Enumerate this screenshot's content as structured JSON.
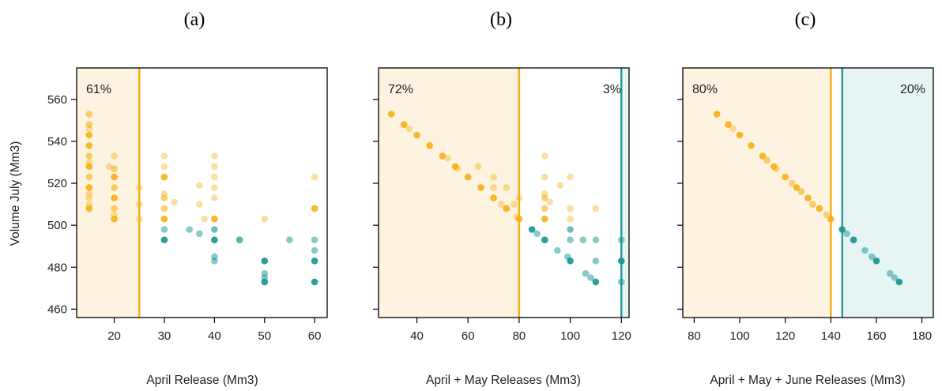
{
  "colors": {
    "orange": "#f5b014",
    "teal": "#149393",
    "orange_shade": "#fdf3e0",
    "teal_shade": "#e6f4f4"
  },
  "shared": {
    "ylabel": "Volume July (Mm3)",
    "ylim": [
      456,
      575
    ],
    "yticks": [
      460,
      480,
      500,
      520,
      540,
      560
    ]
  },
  "chart_data": [
    {
      "panel_label": "(a)",
      "type": "scatter",
      "xlabel": "April Release (Mm3)",
      "xlim": [
        12.5,
        62.5
      ],
      "xticks": [
        20,
        30,
        40,
        50,
        60
      ],
      "threshold_orange": 25,
      "threshold_teal": null,
      "pct_left": "61%",
      "pct_right": "",
      "points": [
        {
          "x": 15,
          "y": 553,
          "c": "orange",
          "a": 0.6
        },
        {
          "x": 15,
          "y": 548,
          "c": "orange",
          "a": 0.6
        },
        {
          "x": 15,
          "y": 546,
          "c": "orange",
          "a": 0.4
        },
        {
          "x": 15,
          "y": 543,
          "c": "orange",
          "a": 0.9
        },
        {
          "x": 15,
          "y": 538,
          "c": "orange",
          "a": 0.9
        },
        {
          "x": 15,
          "y": 533,
          "c": "orange",
          "a": 0.6
        },
        {
          "x": 15,
          "y": 530,
          "c": "orange",
          "a": 0.4
        },
        {
          "x": 15,
          "y": 528,
          "c": "orange",
          "a": 0.9
        },
        {
          "x": 15,
          "y": 523,
          "c": "orange",
          "a": 0.6
        },
        {
          "x": 15,
          "y": 518,
          "c": "orange",
          "a": 0.9
        },
        {
          "x": 15,
          "y": 515,
          "c": "orange",
          "a": 0.4
        },
        {
          "x": 15,
          "y": 513,
          "c": "orange",
          "a": 0.4
        },
        {
          "x": 15,
          "y": 510,
          "c": "orange",
          "a": 0.4
        },
        {
          "x": 15,
          "y": 508,
          "c": "orange",
          "a": 0.9
        },
        {
          "x": 19,
          "y": 528,
          "c": "orange",
          "a": 0.4
        },
        {
          "x": 20,
          "y": 533,
          "c": "orange",
          "a": 0.4
        },
        {
          "x": 20,
          "y": 527,
          "c": "orange",
          "a": 0.6
        },
        {
          "x": 20,
          "y": 523,
          "c": "orange",
          "a": 0.9
        },
        {
          "x": 20,
          "y": 518,
          "c": "orange",
          "a": 0.6
        },
        {
          "x": 20,
          "y": 513,
          "c": "orange",
          "a": 0.9
        },
        {
          "x": 20,
          "y": 508,
          "c": "orange",
          "a": 0.6
        },
        {
          "x": 20,
          "y": 505,
          "c": "orange",
          "a": 0.4
        },
        {
          "x": 20,
          "y": 503,
          "c": "orange",
          "a": 0.9
        },
        {
          "x": 25,
          "y": 518,
          "c": "orange",
          "a": 0.4
        },
        {
          "x": 25,
          "y": 510,
          "c": "orange",
          "a": 0.4
        },
        {
          "x": 25,
          "y": 503,
          "c": "orange",
          "a": 0.4
        },
        {
          "x": 30,
          "y": 533,
          "c": "orange",
          "a": 0.4
        },
        {
          "x": 30,
          "y": 528,
          "c": "orange",
          "a": 0.4
        },
        {
          "x": 30,
          "y": 523,
          "c": "orange",
          "a": 0.9
        },
        {
          "x": 30,
          "y": 515,
          "c": "orange",
          "a": 0.4
        },
        {
          "x": 30,
          "y": 513,
          "c": "orange",
          "a": 0.6
        },
        {
          "x": 30,
          "y": 508,
          "c": "orange",
          "a": 0.6
        },
        {
          "x": 30,
          "y": 503,
          "c": "orange",
          "a": 0.9
        },
        {
          "x": 30,
          "y": 498,
          "c": "teal",
          "a": 0.5
        },
        {
          "x": 30,
          "y": 493,
          "c": "teal",
          "a": 0.9
        },
        {
          "x": 32,
          "y": 511,
          "c": "orange",
          "a": 0.4
        },
        {
          "x": 35,
          "y": 498,
          "c": "teal",
          "a": 0.5
        },
        {
          "x": 37,
          "y": 519,
          "c": "orange",
          "a": 0.4
        },
        {
          "x": 37,
          "y": 510,
          "c": "orange",
          "a": 0.4
        },
        {
          "x": 37,
          "y": 496,
          "c": "teal",
          "a": 0.5
        },
        {
          "x": 38,
          "y": 503,
          "c": "orange",
          "a": 0.4
        },
        {
          "x": 40,
          "y": 533,
          "c": "orange",
          "a": 0.4
        },
        {
          "x": 40,
          "y": 528,
          "c": "orange",
          "a": 0.4
        },
        {
          "x": 40,
          "y": 523,
          "c": "orange",
          "a": 0.4
        },
        {
          "x": 40,
          "y": 518,
          "c": "orange",
          "a": 0.4
        },
        {
          "x": 40,
          "y": 513,
          "c": "orange",
          "a": 0.4
        },
        {
          "x": 40,
          "y": 503,
          "c": "orange",
          "a": 0.9
        },
        {
          "x": 40,
          "y": 498,
          "c": "teal",
          "a": 0.6
        },
        {
          "x": 40,
          "y": 493,
          "c": "teal",
          "a": 0.9
        },
        {
          "x": 40,
          "y": 485,
          "c": "teal",
          "a": 0.5
        },
        {
          "x": 40,
          "y": 483,
          "c": "teal",
          "a": 0.5
        },
        {
          "x": 45,
          "y": 493,
          "c": "teal",
          "a": 0.7
        },
        {
          "x": 50,
          "y": 503,
          "c": "orange",
          "a": 0.4
        },
        {
          "x": 50,
          "y": 483,
          "c": "teal",
          "a": 0.9
        },
        {
          "x": 50,
          "y": 477,
          "c": "teal",
          "a": 0.5
        },
        {
          "x": 50,
          "y": 475,
          "c": "teal",
          "a": 0.5
        },
        {
          "x": 50,
          "y": 473,
          "c": "teal",
          "a": 0.9
        },
        {
          "x": 55,
          "y": 493,
          "c": "teal",
          "a": 0.5
        },
        {
          "x": 60,
          "y": 523,
          "c": "orange",
          "a": 0.4
        },
        {
          "x": 60,
          "y": 508,
          "c": "orange",
          "a": 0.9
        },
        {
          "x": 60,
          "y": 493,
          "c": "teal",
          "a": 0.5
        },
        {
          "x": 60,
          "y": 488,
          "c": "teal",
          "a": 0.5
        },
        {
          "x": 60,
          "y": 483,
          "c": "teal",
          "a": 0.9
        },
        {
          "x": 60,
          "y": 473,
          "c": "teal",
          "a": 0.9
        }
      ]
    },
    {
      "panel_label": "(b)",
      "type": "scatter",
      "xlabel": "April + May Releases (Mm3)",
      "xlim": [
        25,
        123
      ],
      "xticks": [
        40,
        60,
        80,
        100,
        120
      ],
      "threshold_orange": 80,
      "threshold_teal": 120,
      "pct_left": "72%",
      "pct_right": "3%",
      "points": [
        {
          "x": 30,
          "y": 553,
          "c": "orange",
          "a": 0.9
        },
        {
          "x": 35,
          "y": 548,
          "c": "orange",
          "a": 0.9
        },
        {
          "x": 37,
          "y": 546,
          "c": "orange",
          "a": 0.4
        },
        {
          "x": 40,
          "y": 543,
          "c": "orange",
          "a": 0.9
        },
        {
          "x": 45,
          "y": 538,
          "c": "orange",
          "a": 0.9
        },
        {
          "x": 50,
          "y": 533,
          "c": "orange",
          "a": 0.9
        },
        {
          "x": 52,
          "y": 532,
          "c": "orange",
          "a": 0.4
        },
        {
          "x": 55,
          "y": 528,
          "c": "orange",
          "a": 0.9
        },
        {
          "x": 56,
          "y": 527,
          "c": "orange",
          "a": 0.4
        },
        {
          "x": 60,
          "y": 523,
          "c": "orange",
          "a": 0.9
        },
        {
          "x": 64,
          "y": 528,
          "c": "orange",
          "a": 0.4
        },
        {
          "x": 65,
          "y": 518,
          "c": "orange",
          "a": 0.9
        },
        {
          "x": 70,
          "y": 523,
          "c": "orange",
          "a": 0.4
        },
        {
          "x": 70,
          "y": 518,
          "c": "orange",
          "a": 0.4
        },
        {
          "x": 70,
          "y": 513,
          "c": "orange",
          "a": 0.9
        },
        {
          "x": 73,
          "y": 510,
          "c": "orange",
          "a": 0.4
        },
        {
          "x": 75,
          "y": 518,
          "c": "orange",
          "a": 0.4
        },
        {
          "x": 75,
          "y": 508,
          "c": "orange",
          "a": 0.9
        },
        {
          "x": 78,
          "y": 510,
          "c": "orange",
          "a": 0.4
        },
        {
          "x": 79,
          "y": 504,
          "c": "orange",
          "a": 0.4
        },
        {
          "x": 80,
          "y": 513,
          "c": "orange",
          "a": 0.4
        },
        {
          "x": 80,
          "y": 503,
          "c": "orange",
          "a": 0.9
        },
        {
          "x": 85,
          "y": 498,
          "c": "teal",
          "a": 0.9
        },
        {
          "x": 87,
          "y": 496,
          "c": "teal",
          "a": 0.5
        },
        {
          "x": 90,
          "y": 533,
          "c": "orange",
          "a": 0.4
        },
        {
          "x": 90,
          "y": 523,
          "c": "orange",
          "a": 0.4
        },
        {
          "x": 90,
          "y": 515,
          "c": "orange",
          "a": 0.4
        },
        {
          "x": 90,
          "y": 513,
          "c": "orange",
          "a": 0.6
        },
        {
          "x": 90,
          "y": 508,
          "c": "orange",
          "a": 0.6
        },
        {
          "x": 90,
          "y": 503,
          "c": "orange",
          "a": 0.9
        },
        {
          "x": 90,
          "y": 493,
          "c": "teal",
          "a": 0.9
        },
        {
          "x": 92,
          "y": 511,
          "c": "orange",
          "a": 0.4
        },
        {
          "x": 95,
          "y": 488,
          "c": "teal",
          "a": 0.5
        },
        {
          "x": 96,
          "y": 519,
          "c": "orange",
          "a": 0.4
        },
        {
          "x": 100,
          "y": 523,
          "c": "orange",
          "a": 0.4
        },
        {
          "x": 100,
          "y": 508,
          "c": "orange",
          "a": 0.4
        },
        {
          "x": 100,
          "y": 503,
          "c": "orange",
          "a": 0.4
        },
        {
          "x": 100,
          "y": 498,
          "c": "teal",
          "a": 0.6
        },
        {
          "x": 100,
          "y": 493,
          "c": "teal",
          "a": 0.5
        },
        {
          "x": 99,
          "y": 485,
          "c": "teal",
          "a": 0.5
        },
        {
          "x": 100,
          "y": 483,
          "c": "teal",
          "a": 0.9
        },
        {
          "x": 105,
          "y": 493,
          "c": "teal",
          "a": 0.5
        },
        {
          "x": 106,
          "y": 477,
          "c": "teal",
          "a": 0.5
        },
        {
          "x": 108,
          "y": 475,
          "c": "teal",
          "a": 0.5
        },
        {
          "x": 110,
          "y": 508,
          "c": "orange",
          "a": 0.4
        },
        {
          "x": 110,
          "y": 493,
          "c": "teal",
          "a": 0.5
        },
        {
          "x": 110,
          "y": 483,
          "c": "teal",
          "a": 0.5
        },
        {
          "x": 110,
          "y": 473,
          "c": "teal",
          "a": 0.9
        },
        {
          "x": 120,
          "y": 493,
          "c": "teal",
          "a": 0.5
        },
        {
          "x": 120,
          "y": 483,
          "c": "teal",
          "a": 0.9
        },
        {
          "x": 120,
          "y": 473,
          "c": "teal",
          "a": 0.5
        }
      ]
    },
    {
      "panel_label": "(c)",
      "type": "scatter",
      "xlabel": "April + May + June Releases (Mm3)",
      "xlim": [
        75,
        185
      ],
      "xticks": [
        80,
        100,
        120,
        140,
        160,
        180
      ],
      "threshold_orange": 140,
      "threshold_teal": 145,
      "pct_left": "80%",
      "pct_right": "20%",
      "points": [
        {
          "x": 90,
          "y": 553,
          "c": "orange",
          "a": 0.9
        },
        {
          "x": 95,
          "y": 548,
          "c": "orange",
          "a": 0.9
        },
        {
          "x": 97,
          "y": 546,
          "c": "orange",
          "a": 0.4
        },
        {
          "x": 100,
          "y": 543,
          "c": "orange",
          "a": 0.9
        },
        {
          "x": 105,
          "y": 538,
          "c": "orange",
          "a": 0.9
        },
        {
          "x": 110,
          "y": 533,
          "c": "orange",
          "a": 0.9
        },
        {
          "x": 112,
          "y": 531,
          "c": "orange",
          "a": 0.6
        },
        {
          "x": 115,
          "y": 528,
          "c": "orange",
          "a": 0.9
        },
        {
          "x": 116,
          "y": 527,
          "c": "orange",
          "a": 0.5
        },
        {
          "x": 120,
          "y": 523,
          "c": "orange",
          "a": 0.9
        },
        {
          "x": 123,
          "y": 520,
          "c": "orange",
          "a": 0.5
        },
        {
          "x": 125,
          "y": 518,
          "c": "orange",
          "a": 0.9
        },
        {
          "x": 127,
          "y": 516,
          "c": "orange",
          "a": 0.6
        },
        {
          "x": 130,
          "y": 513,
          "c": "orange",
          "a": 0.9
        },
        {
          "x": 132,
          "y": 510,
          "c": "orange",
          "a": 0.6
        },
        {
          "x": 135,
          "y": 508,
          "c": "orange",
          "a": 0.9
        },
        {
          "x": 138,
          "y": 505,
          "c": "orange",
          "a": 0.5
        },
        {
          "x": 140,
          "y": 503,
          "c": "orange",
          "a": 0.9
        },
        {
          "x": 145,
          "y": 498,
          "c": "teal",
          "a": 0.9
        },
        {
          "x": 147,
          "y": 496,
          "c": "teal",
          "a": 0.5
        },
        {
          "x": 150,
          "y": 493,
          "c": "teal",
          "a": 0.9
        },
        {
          "x": 155,
          "y": 488,
          "c": "teal",
          "a": 0.5
        },
        {
          "x": 158,
          "y": 485,
          "c": "teal",
          "a": 0.5
        },
        {
          "x": 160,
          "y": 483,
          "c": "teal",
          "a": 0.9
        },
        {
          "x": 166,
          "y": 477,
          "c": "teal",
          "a": 0.5
        },
        {
          "x": 168,
          "y": 475,
          "c": "teal",
          "a": 0.5
        },
        {
          "x": 170,
          "y": 473,
          "c": "teal",
          "a": 0.9
        }
      ]
    }
  ]
}
